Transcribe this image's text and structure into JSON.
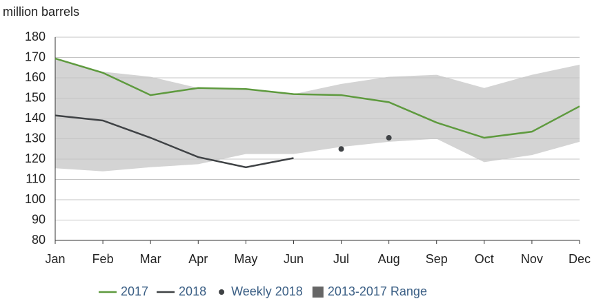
{
  "chart_data": {
    "type": "line",
    "y_label": "million barrels",
    "categories": [
      "Jan",
      "Feb",
      "Mar",
      "Apr",
      "May",
      "Jun",
      "Jul",
      "Aug",
      "Sep",
      "Oct",
      "Nov",
      "Dec"
    ],
    "series": [
      {
        "name": "2017",
        "color": "#5e9a3e",
        "values": [
          169.5,
          162.5,
          151.5,
          155,
          154.5,
          152,
          151.5,
          148,
          138,
          130.5,
          133.5,
          146
        ]
      },
      {
        "name": "2018",
        "color": "#3f4245",
        "values": [
          141.5,
          139,
          130.5,
          121,
          116,
          120.5,
          null,
          null,
          null,
          null,
          null,
          null
        ]
      },
      {
        "name": "Weekly 2018",
        "color": "#3f4245",
        "style": "points",
        "values": [
          null,
          null,
          null,
          null,
          null,
          null,
          125,
          130.5,
          null,
          null,
          null,
          null
        ]
      },
      {
        "name": "2013-2017 Range",
        "color": "#d4d4d4",
        "style": "band",
        "upper": [
          169.5,
          163,
          160.5,
          155,
          154.5,
          152,
          157,
          160.5,
          161.5,
          155,
          161.5,
          166.5
        ],
        "lower": [
          115.5,
          114,
          116,
          117.5,
          122.5,
          122.5,
          126,
          128.5,
          130,
          118.5,
          122,
          128.5
        ]
      }
    ],
    "ylim": [
      80,
      180
    ],
    "yticks": [
      80,
      90,
      100,
      110,
      120,
      130,
      140,
      150,
      160,
      170,
      180
    ],
    "grid": true,
    "legend": "bottom"
  }
}
